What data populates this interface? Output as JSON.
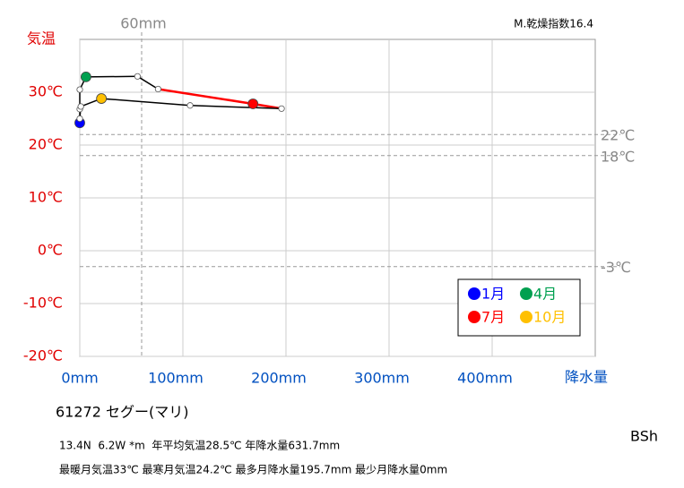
{
  "chart_data": {
    "type": "climograph",
    "y_label": "気温",
    "x_label": "降水量",
    "index_label": "M.乾燥指数16.4",
    "station": "61272  セグー(マリ)",
    "info_lines": [
      "13.4N  6.2W *m  年平均気温28.5℃ 年降水量631.7mm",
      "最暖月気温33℃ 最寒月気温24.2℃ 最多月降水量195.7mm 最少月降水量0mm"
    ],
    "climate_class": "BSh",
    "x": [
      0,
      0,
      0,
      6,
      56,
      76,
      168,
      195.7,
      107,
      21,
      1,
      0
    ],
    "values": [
      24.2,
      26.8,
      30.5,
      32.9,
      33,
      30.6,
      27.8,
      26.9,
      27.5,
      28.8,
      27.3,
      25
    ],
    "marker_colors": [
      "#0000ff",
      "#ffffff",
      "#ffffff",
      "#00a050",
      "#ffffff",
      "#ffffff",
      "#ff0000",
      "#ffffff",
      "#ffffff",
      "#ffc000",
      "#ffffff",
      "#ffffff"
    ],
    "segment_colors": [
      "#000000",
      "#000000",
      "#000000",
      "#000000",
      "#000000",
      "#ff0000",
      "#ff0000",
      "#000000",
      "#000000",
      "#000000",
      "#000000",
      "#000000"
    ],
    "legend": [
      {
        "name": "1月",
        "color": "#0000ff"
      },
      {
        "name": "4月",
        "color": "#00a050"
      },
      {
        "name": "7月",
        "color": "#ff0000"
      },
      {
        "name": "10月",
        "color": "#ffc000"
      }
    ],
    "xlim": [
      0,
      500
    ],
    "ylim": [
      -20,
      40
    ],
    "xticks": [
      {
        "value": 0,
        "label": "0mm"
      },
      {
        "value": 100,
        "label": "100mm"
      },
      {
        "value": 200,
        "label": "200mm"
      },
      {
        "value": 300,
        "label": "300mm"
      },
      {
        "value": 400,
        "label": "400mm"
      }
    ],
    "yticks": [
      {
        "value": -20,
        "label": "-20℃"
      },
      {
        "value": -10,
        "label": "-10℃"
      },
      {
        "value": 0,
        "label": "0℃"
      },
      {
        "value": 10,
        "label": "10℃"
      },
      {
        "value": 20,
        "label": "20℃"
      },
      {
        "value": 30,
        "label": "30℃"
      }
    ],
    "hlines": [
      {
        "value": 22,
        "label": "22℃"
      },
      {
        "value": 18,
        "label": "18℃"
      },
      {
        "value": -3,
        "label": "-3℃"
      }
    ],
    "vlines": [
      {
        "value": 60,
        "label": "60mm"
      }
    ],
    "grid": true
  }
}
